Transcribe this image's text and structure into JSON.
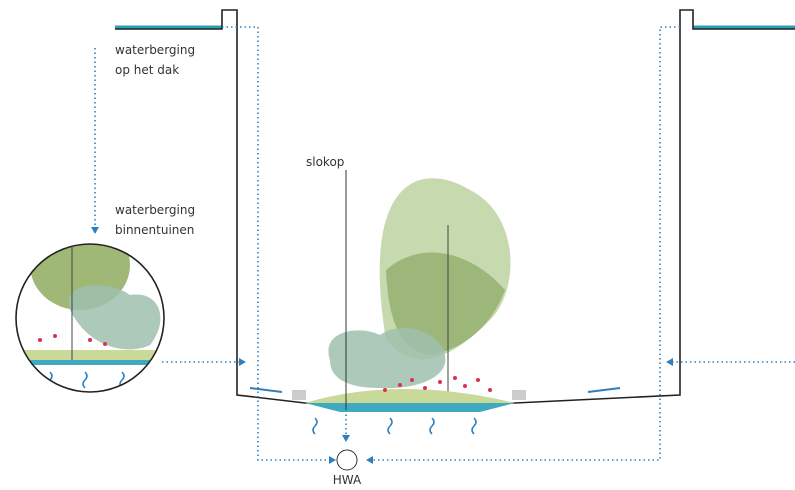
{
  "labels": {
    "roof": [
      "waterberging",
      "op het dak"
    ],
    "gardens": [
      "waterberging",
      "binnentuinen"
    ],
    "drain": "slokop",
    "outlet": "HWA"
  }
}
